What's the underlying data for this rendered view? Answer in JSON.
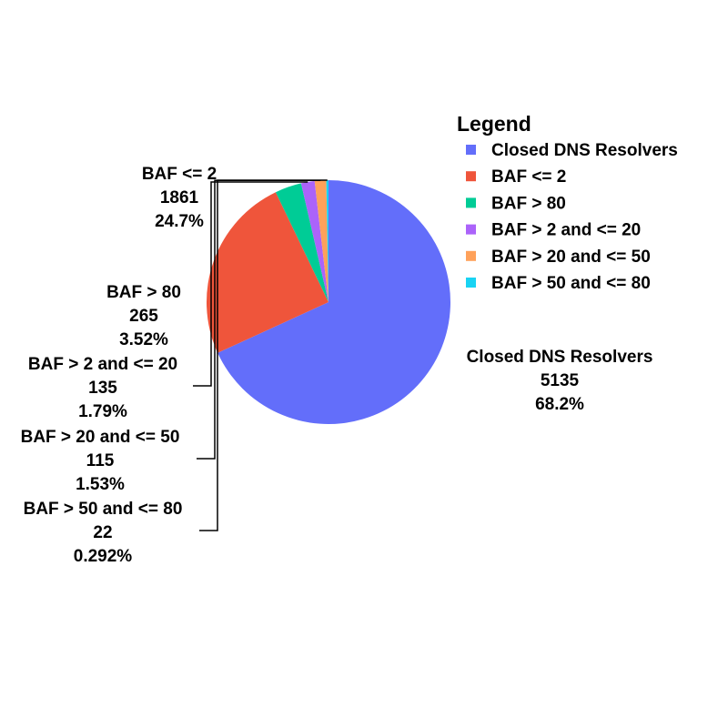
{
  "chart_data": {
    "type": "pie",
    "legend_title": "Legend",
    "legend_position": "top-right",
    "slices": [
      {
        "label": "Closed DNS Resolvers",
        "value": 5135,
        "percent": "68.2%",
        "color": "#636efa"
      },
      {
        "label": "BAF <= 2",
        "value": 1861,
        "percent": "24.7%",
        "color": "#ef553b"
      },
      {
        "label": "BAF > 80",
        "value": 265,
        "percent": "3.52%",
        "color": "#00cc96"
      },
      {
        "label": "BAF > 2 and <= 20",
        "value": 135,
        "percent": "1.79%",
        "color": "#ab63fa"
      },
      {
        "label": "BAF > 20 and <= 50",
        "value": 115,
        "percent": "1.53%",
        "color": "#ffa15a"
      },
      {
        "label": "BAF > 50 and <= 80",
        "value": 22,
        "percent": "0.292%",
        "color": "#19d3f3"
      }
    ]
  }
}
